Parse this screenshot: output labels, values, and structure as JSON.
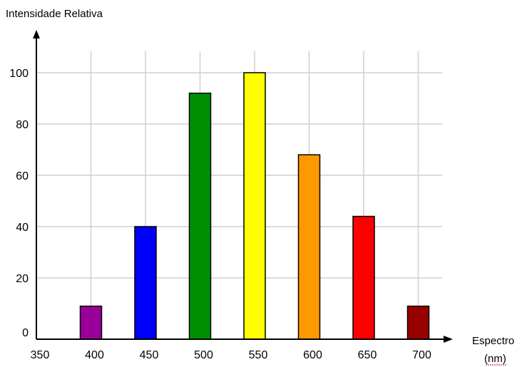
{
  "chart_data": {
    "type": "bar",
    "ylabel": "Intensidade Relativa",
    "xlabel": "Espectro",
    "xlabel_unit": "(nm)",
    "x_ticks": [
      "350",
      "400",
      "450",
      "500",
      "550",
      "600",
      "650",
      "700"
    ],
    "y_ticks": [
      "0",
      "20",
      "40",
      "60",
      "80",
      "100"
    ],
    "ylim": [
      0,
      100
    ],
    "grid": true,
    "categories": [
      "400",
      "450",
      "500",
      "550",
      "600",
      "650",
      "700"
    ],
    "values": [
      9,
      40,
      92,
      100,
      68,
      44,
      9
    ],
    "colors": [
      "#990099",
      "#0000ff",
      "#008f00",
      "#ffff00",
      "#ff9900",
      "#ff0000",
      "#990000"
    ]
  }
}
